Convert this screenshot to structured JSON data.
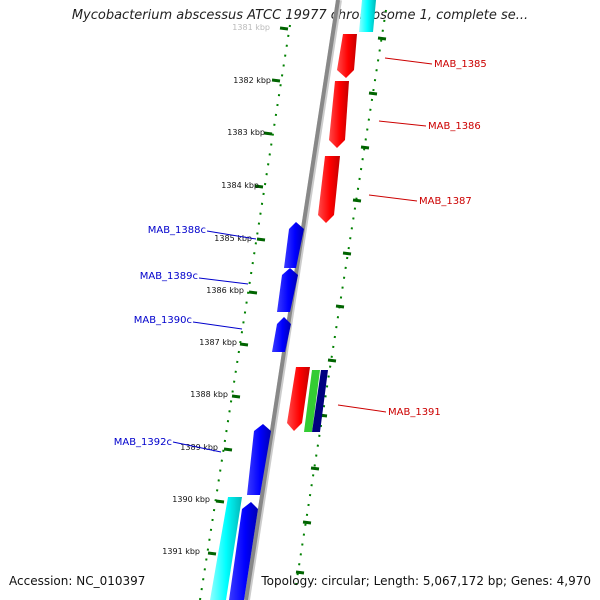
{
  "header": {
    "title": "Mycobacterium abscessus ATCC 19977 chromosome 1, complete se..."
  },
  "footer": {
    "accession": "Accession: NC_010397",
    "stats": "Topology: circular; Length: 5,067,172 bp; Genes: 4,970"
  },
  "colors": {
    "forward_gene": "#ff0000",
    "reverse_gene": "#0000ff",
    "rna_gene": "#00ffff",
    "other_green": "#33cc33",
    "other_navy": "#000080",
    "backbone": "#888888",
    "tick_dots": "#008000"
  },
  "scale_ticks": [
    "1381 kbp",
    "1382 kbp",
    "1383 kbp",
    "1384 kbp",
    "1385 kbp",
    "1386 kbp",
    "1387 kbp",
    "1388 kbp",
    "1389 kbp",
    "1390 kbp",
    "1391 kbp"
  ],
  "forward_genes": [
    "MAB_1385",
    "MAB_1386",
    "MAB_1387",
    "MAB_1391"
  ],
  "reverse_genes": [
    "MAB_1388c",
    "MAB_1389c",
    "MAB_1390c",
    "MAB_1392c"
  ]
}
